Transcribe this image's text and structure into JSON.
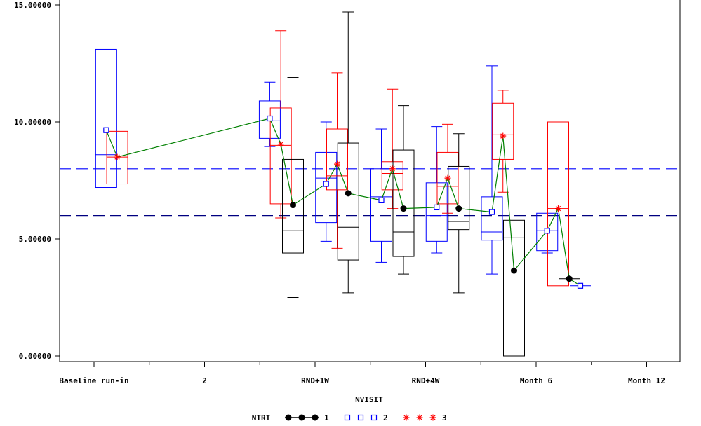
{
  "chart_data": {
    "type": "boxplot-with-mean-line",
    "xlabel": "NVISIT",
    "ylim": [
      0,
      15
    ],
    "xlim": [
      0,
      12
    ],
    "y_ticks": [
      "0.00000",
      "5.00000",
      "10.00000",
      "15.00000"
    ],
    "y_tick_values": [
      0,
      5,
      10,
      15
    ],
    "x_ticks": [
      {
        "x": 0,
        "label": "Baseline run-in"
      },
      {
        "x": 2,
        "label": "2"
      },
      {
        "x": 4,
        "label": "RND+1W"
      },
      {
        "x": 6,
        "label": "RND+4W"
      },
      {
        "x": 8,
        "label": "Month 6"
      },
      {
        "x": 10,
        "label": "Month 12"
      }
    ],
    "minor_ticks": [
      1,
      3,
      5,
      7,
      9
    ],
    "reference_lines": [
      {
        "y": 8,
        "color": "#0000ff",
        "style": "dashed"
      },
      {
        "y": 6,
        "color": "#000080",
        "style": "dashed"
      }
    ],
    "groups": [
      {
        "name": "1",
        "color": "#000000",
        "marker": "dot"
      },
      {
        "name": "2",
        "color": "#0000ff",
        "marker": "square"
      },
      {
        "name": "3",
        "color": "#ff0000",
        "marker": "star"
      }
    ],
    "boxes": [
      {
        "group": "2",
        "x": 0.22,
        "low": 7.2,
        "q1": 7.2,
        "median": 8.6,
        "q3": 13.1,
        "high": 13.1,
        "mean": 9.65
      },
      {
        "group": "3",
        "x": 0.42,
        "low": 7.35,
        "q1": 7.35,
        "median": 8.5,
        "q3": 9.6,
        "high": 9.6,
        "mean": 8.5
      },
      {
        "group": "2",
        "x": 3.18,
        "low": 8.95,
        "q1": 9.3,
        "median": 10.05,
        "q3": 10.9,
        "high": 11.7,
        "mean": 10.15
      },
      {
        "group": "3",
        "x": 3.38,
        "low": 5.9,
        "q1": 6.5,
        "median": 9.0,
        "q3": 10.6,
        "high": 13.9,
        "mean": 9.05
      },
      {
        "group": "1",
        "x": 3.6,
        "low": 2.5,
        "q1": 4.4,
        "median": 5.35,
        "q3": 8.4,
        "high": 11.9,
        "mean": 6.45
      },
      {
        "group": "2",
        "x": 4.2,
        "low": 4.9,
        "q1": 5.7,
        "median": 7.6,
        "q3": 8.7,
        "high": 10.0,
        "mean": 7.35
      },
      {
        "group": "3",
        "x": 4.4,
        "low": 4.6,
        "q1": 7.1,
        "median": 7.7,
        "q3": 9.7,
        "high": 12.1,
        "mean": 8.2
      },
      {
        "group": "1",
        "x": 4.6,
        "low": 2.7,
        "q1": 4.1,
        "median": 5.5,
        "q3": 9.1,
        "high": 14.7,
        "mean": 6.95
      },
      {
        "group": "2",
        "x": 5.2,
        "low": 4.0,
        "q1": 4.9,
        "median": 6.8,
        "q3": 8.0,
        "high": 9.7,
        "mean": 6.65
      },
      {
        "group": "3",
        "x": 5.4,
        "low": 6.3,
        "q1": 7.1,
        "median": 7.8,
        "q3": 8.3,
        "high": 11.4,
        "mean": 8.0
      },
      {
        "group": "1",
        "x": 5.6,
        "low": 3.5,
        "q1": 4.25,
        "median": 5.3,
        "q3": 8.8,
        "high": 10.7,
        "mean": 6.3
      },
      {
        "group": "2",
        "x": 6.2,
        "low": 4.4,
        "q1": 4.9,
        "median": 6.0,
        "q3": 7.4,
        "high": 9.8,
        "mean": 6.35
      },
      {
        "group": "3",
        "x": 6.4,
        "low": 6.1,
        "q1": 6.5,
        "median": 7.25,
        "q3": 8.7,
        "high": 9.9,
        "mean": 7.6
      },
      {
        "group": "1",
        "x": 6.6,
        "low": 2.7,
        "q1": 5.4,
        "median": 5.75,
        "q3": 8.1,
        "high": 9.5,
        "mean": 6.3
      },
      {
        "group": "2",
        "x": 7.2,
        "low": 3.5,
        "q1": 4.95,
        "median": 5.3,
        "q3": 6.8,
        "high": 12.4,
        "mean": 6.15
      },
      {
        "group": "3",
        "x": 7.4,
        "low": 7.0,
        "q1": 8.4,
        "median": 9.45,
        "q3": 10.8,
        "high": 11.35,
        "mean": 9.4
      },
      {
        "group": "1",
        "x": 7.6,
        "low": 0.0,
        "q1": 0.0,
        "median": 5.05,
        "q3": 5.8,
        "high": 5.8,
        "mean": 3.65
      },
      {
        "group": "2",
        "x": 8.2,
        "low": 4.4,
        "q1": 4.5,
        "median": 5.35,
        "q3": 6.1,
        "high": 6.1,
        "mean": 5.35
      },
      {
        "group": "3",
        "x": 8.4,
        "low": 3.0,
        "q1": 3.0,
        "median": 6.3,
        "q3": 10.0,
        "high": 10.0,
        "mean": 6.3
      },
      {
        "group": "1",
        "x": 8.6,
        "low": 3.3,
        "q1": 3.3,
        "median": 3.3,
        "q3": 3.3,
        "high": 3.3,
        "mean": 3.3
      },
      {
        "group": "2",
        "x": 8.8,
        "low": 3.0,
        "q1": 3.0,
        "median": 3.0,
        "q3": 3.0,
        "high": 3.0,
        "mean": 3.0
      }
    ],
    "mean_line_color": "#008000"
  }
}
